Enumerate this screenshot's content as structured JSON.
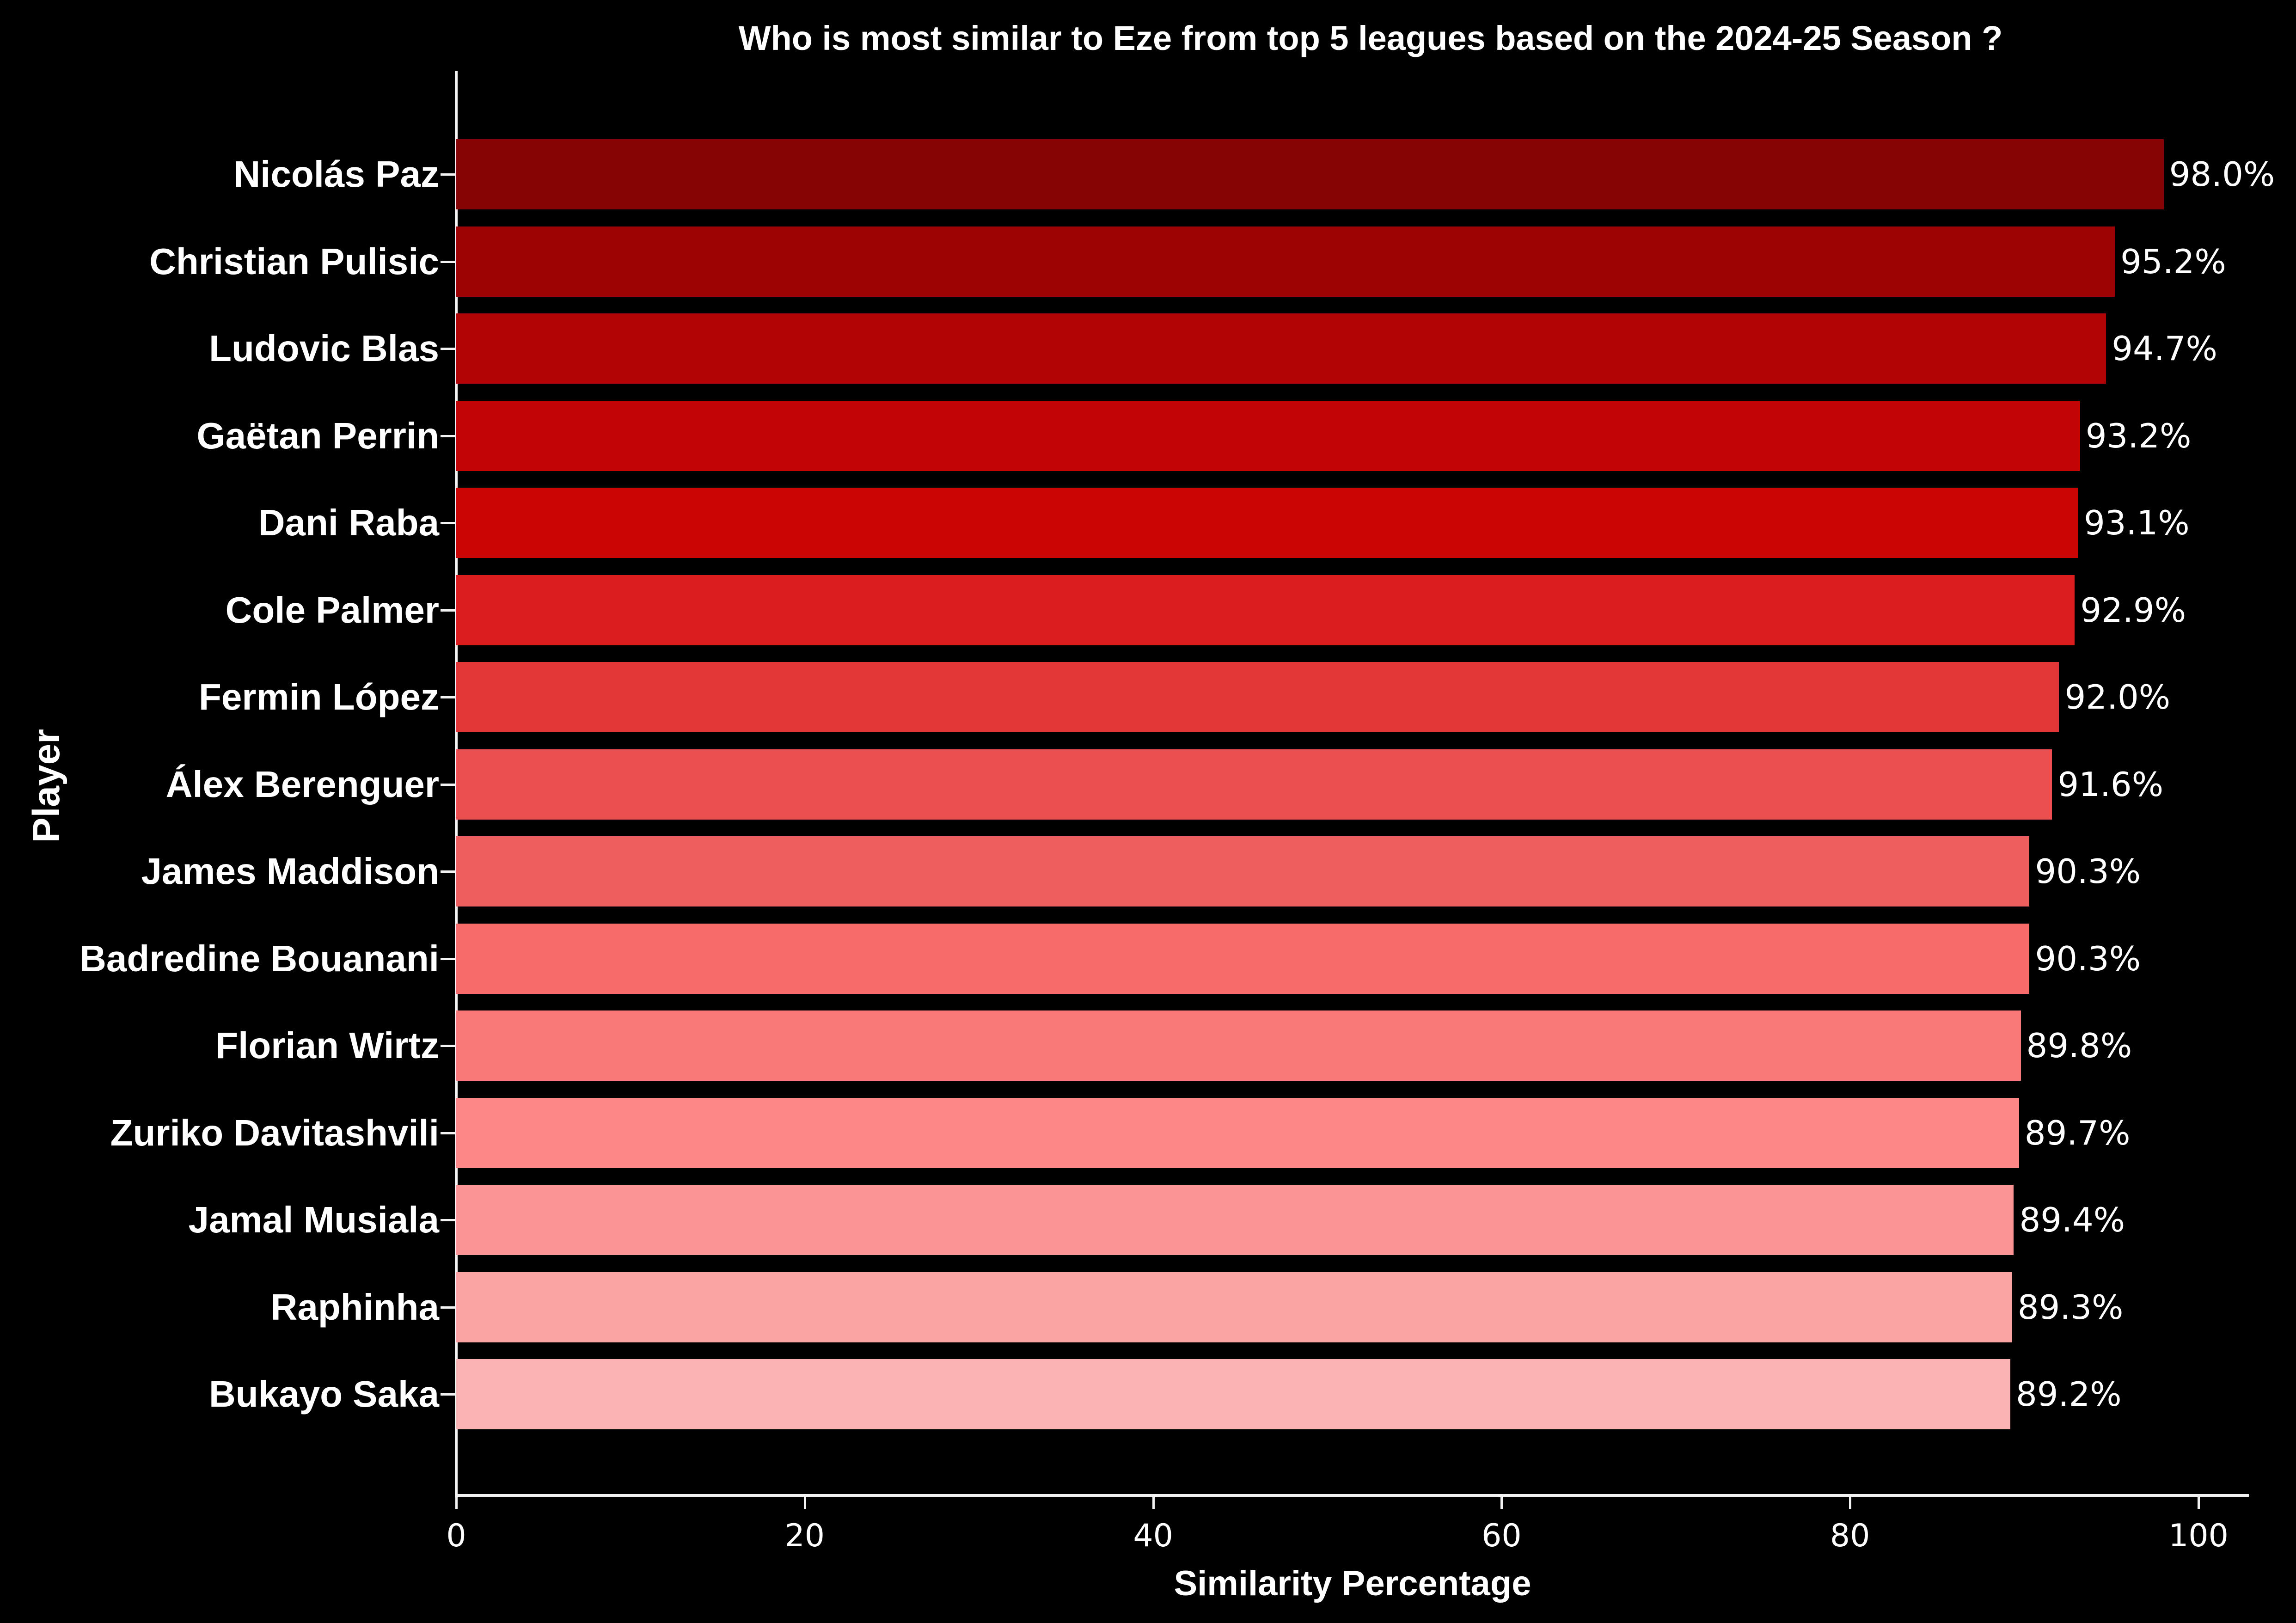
{
  "title": "Who is most similar to Eze from top 5 leagues based on the 2024-25 Season ?",
  "chart_data": {
    "type": "bar",
    "orientation": "horizontal",
    "title": "Who is most similar to Eze from top 5 leagues based on the 2024-25 Season ?",
    "xlabel": "Similarity Percentage",
    "ylabel": "Player",
    "categories": [
      "Nicolás Paz",
      "Christian Pulisic",
      "Ludovic Blas",
      "Gaëtan Perrin",
      "Dani Raba",
      "Cole Palmer",
      "Fermin López",
      "Álex Berenguer",
      "James Maddison",
      "Badredine Bouanani",
      "Florian Wirtz",
      "Zuriko Davitashvili",
      "Jamal Musiala",
      "Raphinha",
      "Bukayo Saka"
    ],
    "values": [
      98.0,
      95.2,
      94.7,
      93.2,
      93.1,
      92.9,
      92.0,
      91.6,
      90.3,
      90.3,
      89.8,
      89.7,
      89.4,
      89.3,
      89.2
    ],
    "value_suffix": "%",
    "bar_colors": [
      "#860404",
      "#9E0303",
      "#B20404",
      "#C20404",
      "#CB0404",
      "#DB1D1D",
      "#E33636",
      "#EB4F4F",
      "#EF5E5E",
      "#F76B6B",
      "#F97979",
      "#FB8787",
      "#FB9595",
      "#FBA4A4",
      "#FBB3B3"
    ],
    "x_ticks": [
      0,
      20,
      40,
      60,
      80,
      100
    ],
    "xlim": [
      0,
      102.9
    ],
    "grid": false,
    "legend_position": "none",
    "background_color": "#000000",
    "text_color": "#ffffff",
    "axis_color": "#f2f2f2"
  }
}
